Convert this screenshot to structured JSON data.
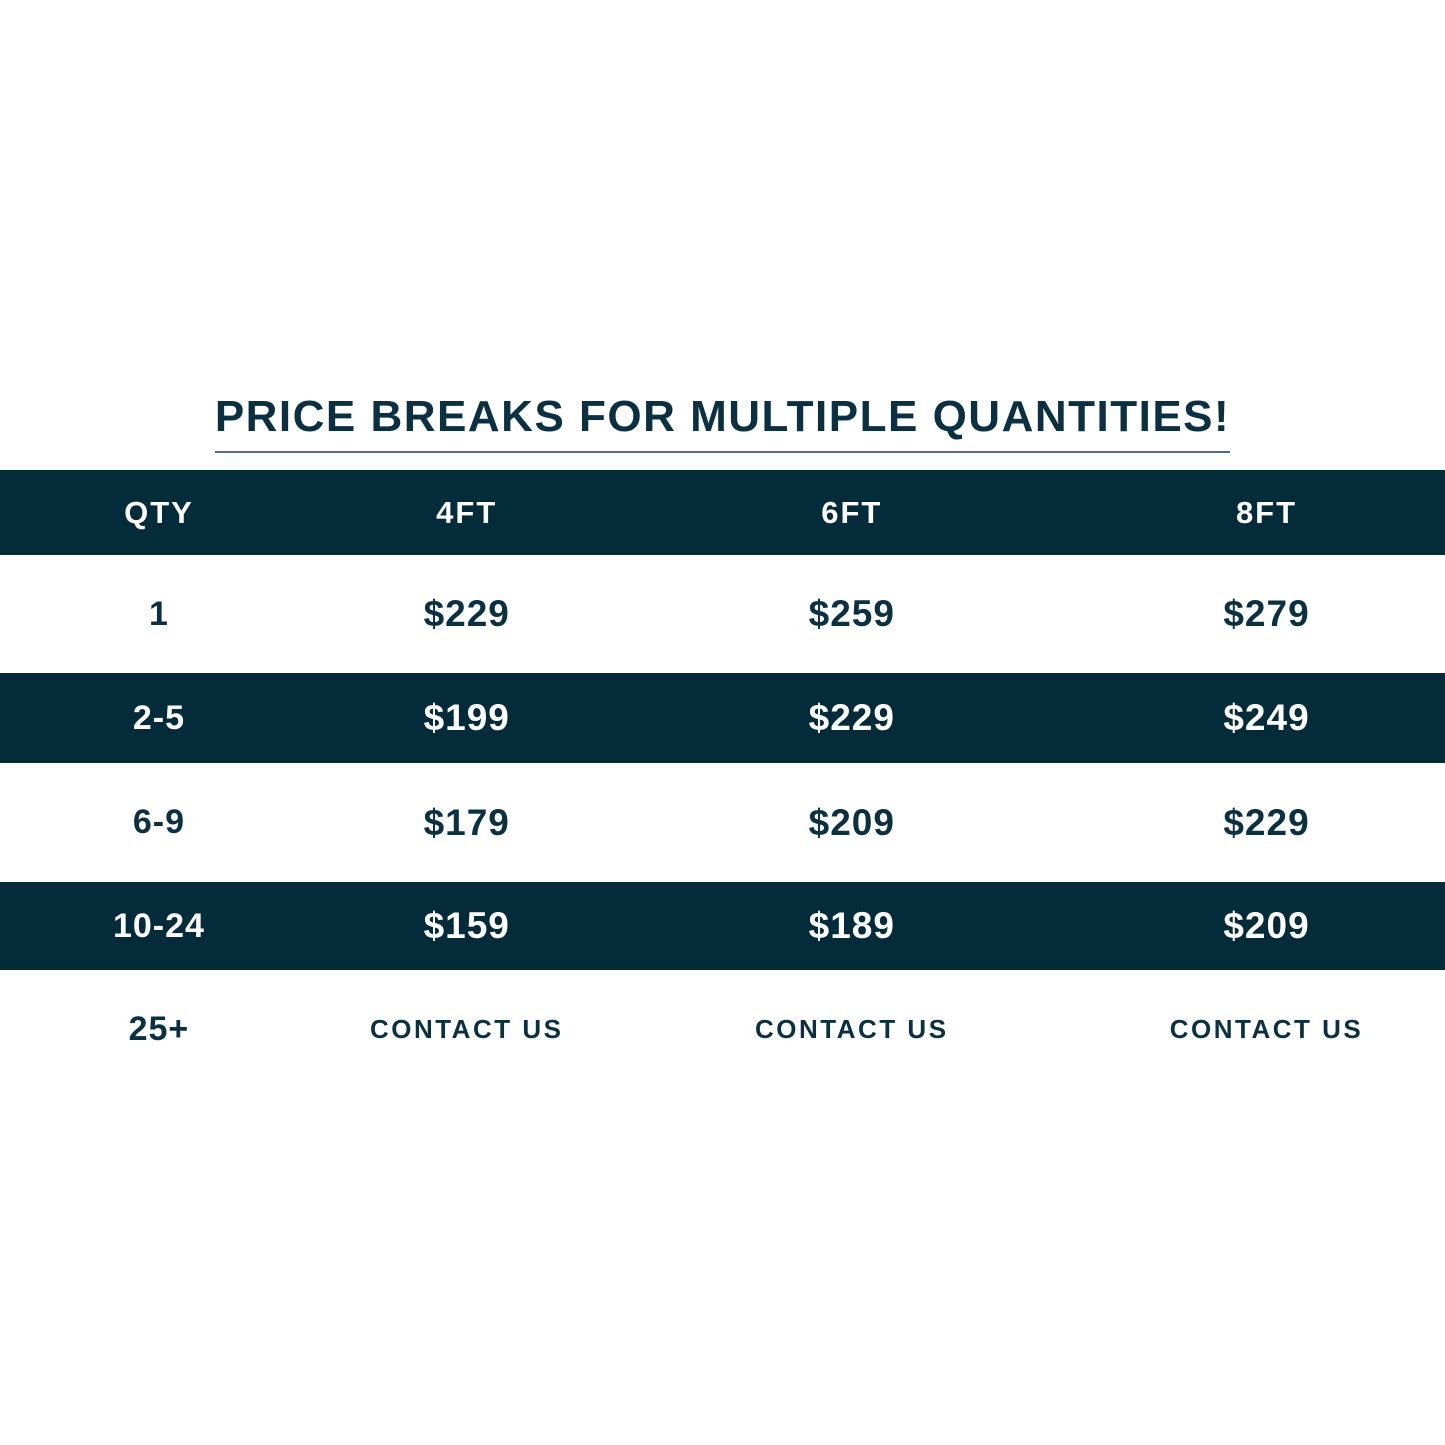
{
  "title": "PRICE BREAKS FOR MULTIPLE QUANTITIES!",
  "colors": {
    "dark_band": "#042b3a",
    "text_navy": "#0b3042",
    "underline": "#50707d",
    "white": "#ffffff"
  },
  "table": {
    "headers": [
      "QTY",
      "4FT",
      "6FT",
      "8FT"
    ],
    "rows": [
      {
        "qty": "1",
        "cells": [
          "$229",
          "$259",
          "$279"
        ]
      },
      {
        "qty": "2-5",
        "cells": [
          "$199",
          "$229",
          "$249"
        ]
      },
      {
        "qty": "6-9",
        "cells": [
          "$179",
          "$209",
          "$229"
        ]
      },
      {
        "qty": "10-24",
        "cells": [
          "$159",
          "$189",
          "$209"
        ]
      },
      {
        "qty": "25+",
        "cells": [
          "CONTACT US",
          "CONTACT US",
          "CONTACT US"
        ]
      }
    ]
  },
  "chart_data": {
    "type": "table",
    "title": "PRICE BREAKS FOR MULTIPLE QUANTITIES!",
    "columns": [
      "QTY",
      "4FT",
      "6FT",
      "8FT"
    ],
    "rows": [
      [
        "1",
        "$229",
        "$259",
        "$279"
      ],
      [
        "2-5",
        "$199",
        "$229",
        "$249"
      ],
      [
        "6-9",
        "$179",
        "$209",
        "$229"
      ],
      [
        "10-24",
        "$159",
        "$189",
        "$209"
      ],
      [
        "25+",
        "CONTACT US",
        "CONTACT US",
        "CONTACT US"
      ]
    ],
    "layout": {
      "header_background": "#042b3a",
      "row_stripe_pattern": [
        "white",
        "dark",
        "white",
        "dark",
        "white"
      ],
      "full_width_bands": true
    }
  }
}
